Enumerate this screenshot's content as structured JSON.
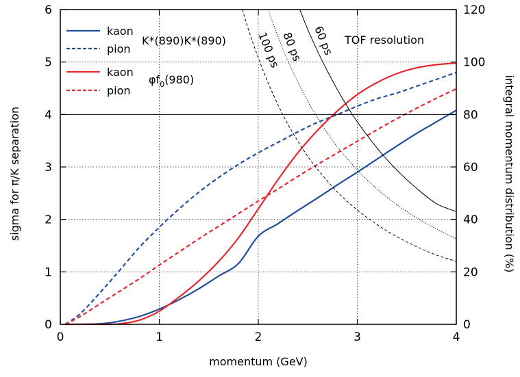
{
  "chart_data": {
    "type": "line",
    "xlabel": "momentum (GeV)",
    "ylabel_left": "sigma for π/K separation",
    "ylabel_right": "integral momentum distribution (%)",
    "xlim": [
      0,
      4
    ],
    "ylim_left": [
      0,
      6
    ],
    "ylim_right": [
      0,
      120
    ],
    "x_ticks": [
      "0",
      "1",
      "2",
      "3",
      "4"
    ],
    "y_ticks_left": [
      "0",
      "1",
      "2",
      "3",
      "4",
      "5",
      "6"
    ],
    "y_ticks_right": [
      "0",
      "20",
      "40",
      "60",
      "80",
      "100",
      "120"
    ],
    "grid": "dotted",
    "colors": {
      "blue": "#1f4e9a",
      "red": "#e8262e",
      "black": "#000000",
      "grid": "#555555"
    },
    "legend": {
      "position": "top-left",
      "entries": [
        {
          "label": "kaon",
          "style": "solid",
          "color": "#1f4e9a"
        },
        {
          "label": "pion",
          "style": "dashed",
          "color": "#1f4e9a"
        },
        {
          "label": "kaon",
          "style": "solid",
          "color": "#e8262e"
        },
        {
          "label": "pion",
          "style": "dashed",
          "color": "#e8262e"
        }
      ],
      "group_labels": [
        {
          "text": "K*(890)K*(890)",
          "color": "#1a72c0"
        },
        {
          "text_main": "φf",
          "text_sub": "0",
          "text_tail": "(980)",
          "color": "#e8262e"
        }
      ]
    },
    "annotations": {
      "tof_title": "TOF resolution",
      "tof_labels": [
        "60 ps",
        "80 ps",
        "100 ps"
      ]
    },
    "series": [
      {
        "name": "kaon",
        "group": "K*(890)K*(890)",
        "axis": "right",
        "style": "solid",
        "color": "#1f4e9a",
        "x": [
          0.05,
          0.4,
          0.6,
          0.8,
          1.0,
          1.2,
          1.4,
          1.6,
          1.8,
          2.0,
          2.2,
          2.4,
          2.6,
          2.8,
          3.0,
          3.2,
          3.4,
          3.6,
          3.8,
          4.0
        ],
        "y": [
          0,
          0.2,
          1.2,
          3.0,
          5.8,
          9.4,
          13.6,
          18.4,
          23.2,
          33.6,
          38.4,
          43.4,
          48.2,
          53.2,
          58.0,
          63.0,
          68.0,
          72.8,
          77.2,
          81.6
        ]
      },
      {
        "name": "pion",
        "group": "K*(890)K*(890)",
        "axis": "right",
        "style": "dashed",
        "color": "#1f4e9a",
        "x": [
          0.05,
          0.2,
          0.4,
          0.6,
          0.8,
          1.0,
          1.2,
          1.4,
          1.6,
          1.8,
          2.0,
          2.2,
          2.4,
          2.6,
          2.8,
          3.0,
          3.2,
          3.4,
          3.6,
          3.8,
          4.0
        ],
        "y": [
          0,
          4,
          12,
          20.6,
          29.4,
          37.0,
          44.0,
          50.4,
          56.0,
          61.0,
          65.4,
          69.4,
          73.4,
          77.0,
          80.0,
          83.2,
          86.0,
          88.2,
          90.8,
          93.4,
          96.0
        ]
      },
      {
        "name": "kaon",
        "group": "φf0(980)",
        "axis": "right",
        "style": "solid",
        "color": "#e8262e",
        "x": [
          0.05,
          0.4,
          0.6,
          0.8,
          1.0,
          1.2,
          1.4,
          1.6,
          1.8,
          2.0,
          2.2,
          2.4,
          2.6,
          2.8,
          3.0,
          3.2,
          3.4,
          3.6,
          3.8,
          4.0
        ],
        "y": [
          0,
          0,
          0.2,
          1.6,
          5.0,
          10.4,
          16.6,
          24.0,
          33.0,
          44.0,
          55.2,
          65.4,
          74.0,
          81.4,
          87.6,
          92.2,
          95.6,
          97.8,
          99.0,
          99.6
        ]
      },
      {
        "name": "pion",
        "group": "φf0(980)",
        "axis": "right",
        "style": "dashed",
        "color": "#e8262e",
        "x": [
          0.05,
          0.2,
          0.4,
          0.6,
          0.8,
          1.0,
          1.2,
          1.4,
          1.6,
          1.8,
          2.0,
          2.2,
          2.4,
          2.6,
          2.8,
          3.0,
          3.2,
          3.4,
          3.6,
          3.8,
          4.0
        ],
        "y": [
          0,
          3.0,
          7.8,
          12.6,
          17.4,
          22.6,
          27.6,
          32.6,
          37.4,
          42.2,
          47.0,
          51.6,
          56.4,
          61.0,
          65.4,
          69.8,
          74.2,
          78.4,
          82.4,
          86.2,
          89.8
        ]
      },
      {
        "name": "60 ps",
        "axis": "left",
        "style": "solid-thin",
        "color": "#000000",
        "x": [
          2.42,
          2.5,
          2.6,
          2.7,
          2.8,
          2.9,
          3.0,
          3.2,
          3.4,
          3.6,
          3.8,
          4.0
        ],
        "y": [
          6.0,
          5.62,
          5.2,
          4.82,
          4.47,
          4.15,
          3.86,
          3.36,
          2.94,
          2.59,
          2.3,
          2.15
        ]
      },
      {
        "name": "80 ps",
        "axis": "left",
        "style": "dotted",
        "color": "#000000",
        "x": [
          2.1,
          2.2,
          2.3,
          2.4,
          2.5,
          2.6,
          2.7,
          2.8,
          3.0,
          3.2,
          3.4,
          3.6,
          3.8,
          4.0
        ],
        "y": [
          6.0,
          5.48,
          5.02,
          4.62,
          4.25,
          3.93,
          3.64,
          3.38,
          2.94,
          2.58,
          2.28,
          2.03,
          1.82,
          1.63
        ]
      },
      {
        "name": "100 ps",
        "axis": "left",
        "style": "dashed-thin",
        "color": "#000000",
        "x": [
          1.84,
          1.9,
          2.0,
          2.1,
          2.2,
          2.3,
          2.4,
          2.5,
          2.6,
          2.8,
          3.0,
          3.2,
          3.4,
          3.6,
          3.8,
          4.0
        ],
        "y": [
          6.0,
          5.62,
          5.08,
          4.6,
          4.18,
          3.81,
          3.49,
          3.2,
          2.95,
          2.52,
          2.18,
          1.9,
          1.67,
          1.48,
          1.32,
          1.2
        ]
      }
    ]
  }
}
